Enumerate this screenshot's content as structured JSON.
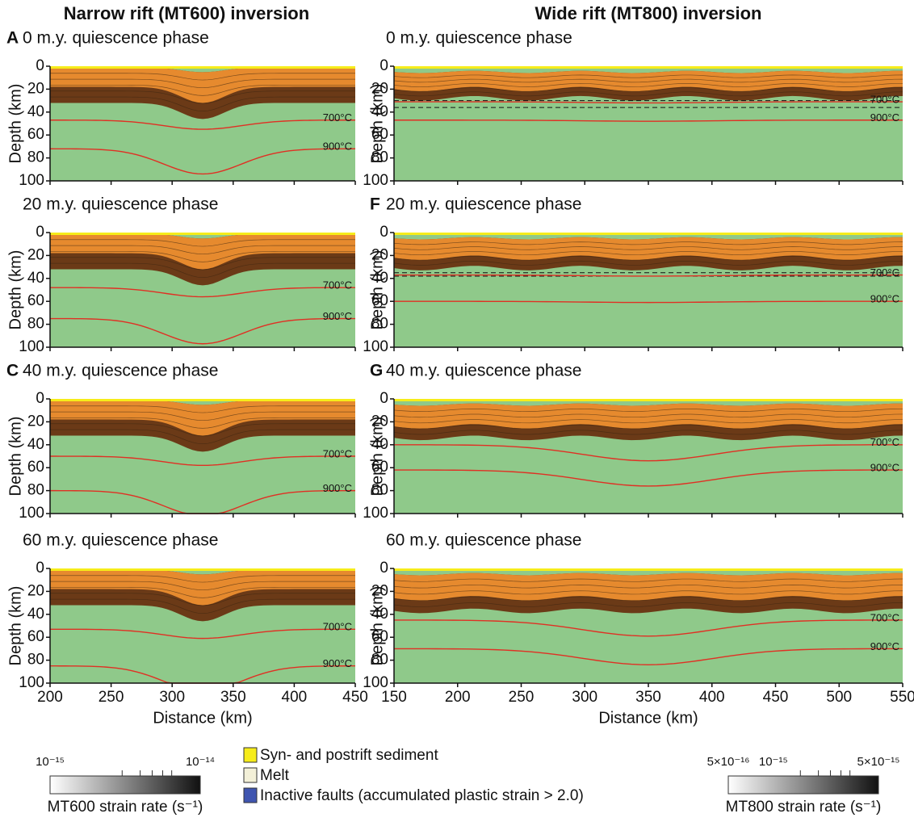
{
  "y_axis": {
    "label": "Depth (km)",
    "lim": [
      0,
      100
    ],
    "ticks": [
      0,
      20,
      40,
      60,
      80,
      100
    ]
  },
  "columns": [
    {
      "title": "Narrow rift (MT600) inversion",
      "x_axis": {
        "label": "Distance (km)",
        "lim": [
          200,
          450
        ],
        "ticks": [
          200,
          250,
          300,
          350,
          400,
          450
        ]
      },
      "panels": [
        {
          "letter": "A",
          "title": "0 m.y. quiescence phase",
          "isotherm_labels": [
            "700°C",
            "900°C"
          ]
        },
        {
          "title": "20 m.y. quiescence phase",
          "isotherm_labels": [
            "700°C",
            "900°C"
          ]
        },
        {
          "letter": "C",
          "title": "40 m.y. quiescence phase",
          "isotherm_labels": [
            "700°C",
            "900°C"
          ]
        },
        {
          "title": "60 m.y. quiescence phase",
          "isotherm_labels": [
            "700°C",
            "900°C"
          ]
        }
      ],
      "strain_legend": {
        "title": "MT600 strain rate (s⁻¹)",
        "labels": [
          "10⁻¹⁵",
          "10⁻¹⁴"
        ]
      }
    },
    {
      "title": "Wide rift (MT800) inversion",
      "x_axis": {
        "label": "Distance (km)",
        "lim": [
          150,
          550
        ],
        "ticks": [
          150,
          200,
          250,
          300,
          350,
          400,
          450,
          500,
          550
        ]
      },
      "panels": [
        {
          "title": "0 m.y. quiescence phase",
          "isotherm_labels": [
            "700°C",
            "900°C"
          ]
        },
        {
          "letter": "F",
          "title": "20 m.y. quiescence phase",
          "isotherm_labels": [
            "700°C",
            "900°C"
          ]
        },
        {
          "letter": "G",
          "title": "40 m.y. quiescence phase",
          "isotherm_labels": [
            "700°C",
            "900°C"
          ]
        },
        {
          "title": "60 m.y. quiescence phase",
          "isotherm_labels": [
            "700°C",
            "900°C"
          ]
        }
      ],
      "strain_legend": {
        "title": "MT800 strain rate (s⁻¹)",
        "labels": [
          "5×10⁻¹⁶",
          "10⁻¹⁵",
          "5×10⁻¹⁵"
        ]
      }
    }
  ],
  "legend": [
    "Syn- and postrift sediment",
    "Melt",
    "Inactive faults (accumulated plastic strain > 2.0)"
  ]
}
